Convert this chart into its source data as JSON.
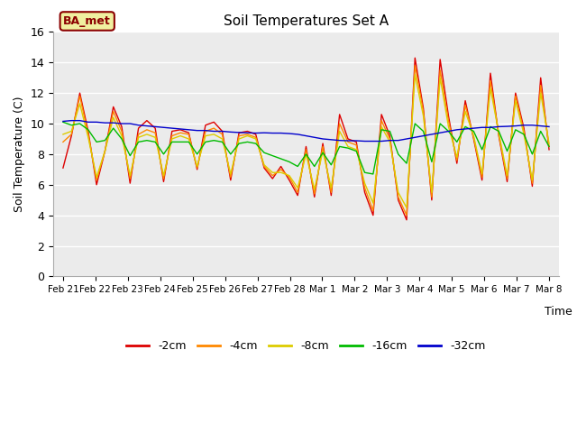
{
  "title": "Soil Temperatures Set A",
  "xlabel": "Time",
  "ylabel": "Soil Temperature (C)",
  "ylim": [
    0,
    16
  ],
  "yticks": [
    0,
    2,
    4,
    6,
    8,
    10,
    12,
    14,
    16
  ],
  "plot_bg_color": "#ebebeb",
  "fig_bg_color": "#ffffff",
  "legend_label": "BA_met",
  "x_labels": [
    "Feb 21",
    "Feb 22",
    "Feb 23",
    "Feb 24",
    "Feb 25",
    "Feb 26",
    "Feb 27",
    "Feb 28",
    "Mar 1",
    "Mar 2",
    "Mar 3",
    "Mar 4",
    "Mar 5",
    "Mar 6",
    "Mar 7",
    "Mar 8"
  ],
  "series": {
    "-2cm": {
      "color": "#dd0000",
      "data": [
        7.1,
        9.2,
        12.0,
        9.5,
        6.0,
        8.2,
        11.1,
        9.8,
        6.1,
        9.7,
        10.2,
        9.7,
        6.2,
        9.5,
        9.6,
        9.4,
        7.0,
        9.9,
        10.1,
        9.5,
        6.3,
        9.4,
        9.5,
        9.3,
        7.1,
        6.4,
        7.2,
        6.3,
        5.3,
        8.5,
        5.2,
        8.7,
        5.3,
        10.6,
        9.0,
        8.8,
        5.5,
        4.0,
        10.6,
        9.2,
        5.0,
        3.7,
        14.3,
        11.0,
        5.0,
        14.2,
        10.5,
        7.4,
        11.5,
        9.0,
        6.3,
        13.3,
        9.2,
        6.2,
        12.0,
        9.7,
        5.9,
        13.0,
        8.3
      ]
    },
    "-4cm": {
      "color": "#ff8800",
      "data": [
        8.8,
        9.3,
        11.8,
        9.3,
        6.3,
        8.2,
        10.8,
        9.5,
        6.4,
        9.3,
        9.6,
        9.4,
        6.4,
        9.2,
        9.4,
        9.3,
        7.1,
        9.5,
        9.7,
        9.3,
        6.5,
        9.2,
        9.3,
        9.1,
        7.2,
        6.6,
        7.0,
        6.5,
        5.5,
        8.3,
        5.4,
        8.5,
        5.5,
        10.0,
        8.8,
        8.6,
        5.8,
        4.3,
        10.2,
        9.0,
        5.2,
        4.0,
        13.8,
        10.8,
        5.2,
        13.5,
        10.2,
        7.6,
        11.2,
        9.1,
        6.5,
        12.8,
        9.3,
        6.4,
        11.8,
        9.5,
        6.1,
        12.5,
        8.5
      ]
    },
    "-8cm": {
      "color": "#ddcc00",
      "data": [
        9.3,
        9.5,
        11.3,
        9.1,
        6.5,
        8.2,
        10.4,
        9.2,
        6.6,
        9.1,
        9.3,
        9.1,
        6.6,
        9.0,
        9.2,
        9.0,
        7.2,
        9.2,
        9.3,
        9.0,
        6.7,
        9.0,
        9.2,
        9.0,
        7.3,
        6.8,
        6.8,
        6.6,
        5.8,
        8.0,
        5.7,
        8.2,
        5.8,
        9.5,
        8.5,
        8.3,
        6.1,
        4.8,
        9.8,
        8.8,
        5.5,
        4.5,
        13.2,
        10.5,
        5.5,
        13.0,
        9.8,
        7.8,
        10.8,
        9.2,
        6.7,
        12.3,
        9.4,
        6.6,
        11.5,
        9.3,
        6.3,
        12.0,
        8.7
      ]
    },
    "-16cm": {
      "color": "#00bb00",
      "data": [
        10.1,
        9.9,
        10.0,
        9.6,
        8.8,
        8.9,
        9.7,
        9.0,
        7.9,
        8.8,
        8.9,
        8.8,
        8.0,
        8.8,
        8.8,
        8.8,
        8.0,
        8.8,
        8.9,
        8.8,
        8.0,
        8.7,
        8.8,
        8.7,
        8.1,
        7.9,
        7.7,
        7.5,
        7.2,
        8.0,
        7.2,
        8.1,
        7.3,
        8.5,
        8.4,
        8.2,
        6.8,
        6.7,
        9.6,
        9.5,
        8.0,
        7.4,
        10.0,
        9.5,
        7.5,
        10.0,
        9.5,
        8.8,
        9.8,
        9.5,
        8.3,
        9.8,
        9.5,
        8.2,
        9.6,
        9.3,
        8.0,
        9.5,
        8.5
      ]
    },
    "-32cm": {
      "color": "#0000cc",
      "data": [
        10.15,
        10.2,
        10.2,
        10.1,
        10.1,
        10.05,
        10.05,
        10.0,
        10.0,
        9.9,
        9.85,
        9.8,
        9.75,
        9.7,
        9.65,
        9.6,
        9.55,
        9.55,
        9.5,
        9.5,
        9.45,
        9.42,
        9.4,
        9.38,
        9.4,
        9.38,
        9.38,
        9.35,
        9.3,
        9.2,
        9.1,
        9.0,
        8.95,
        8.9,
        8.88,
        8.88,
        8.85,
        8.85,
        8.85,
        8.9,
        8.9,
        9.0,
        9.1,
        9.2,
        9.3,
        9.4,
        9.5,
        9.6,
        9.65,
        9.7,
        9.75,
        9.75,
        9.8,
        9.82,
        9.85,
        9.9,
        9.9,
        9.85,
        9.8
      ]
    }
  }
}
